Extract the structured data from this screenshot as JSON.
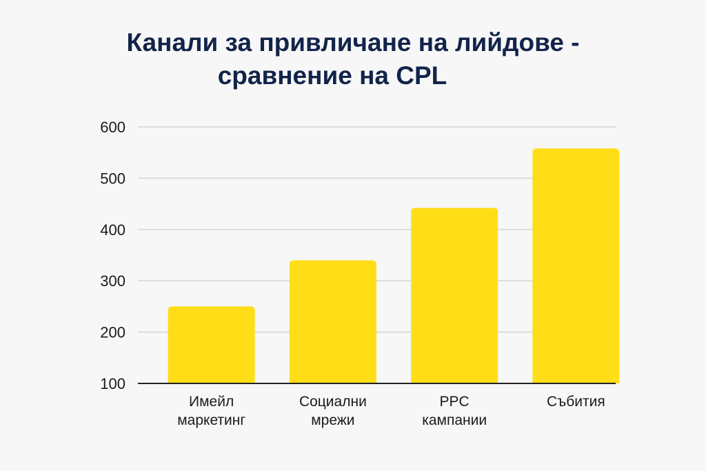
{
  "chart_data": {
    "type": "bar",
    "title_lines": [
      "Канали за привличане на лийдове -",
      "сравнение на CPL"
    ],
    "categories": [
      [
        "Имейл",
        "маркетинг"
      ],
      [
        "Социални",
        "мрежи"
      ],
      [
        "PPC",
        "кампании"
      ],
      [
        "Събития"
      ]
    ],
    "values": [
      250,
      340,
      442,
      558
    ],
    "yticks": [
      100,
      200,
      300,
      400,
      500,
      600
    ],
    "ylim": [
      100,
      600
    ],
    "grid": true,
    "xlabel": "",
    "ylabel": "",
    "bar_color": "#ffde17",
    "grid_color": "#d4d4d4",
    "axis_color": "#222222"
  }
}
